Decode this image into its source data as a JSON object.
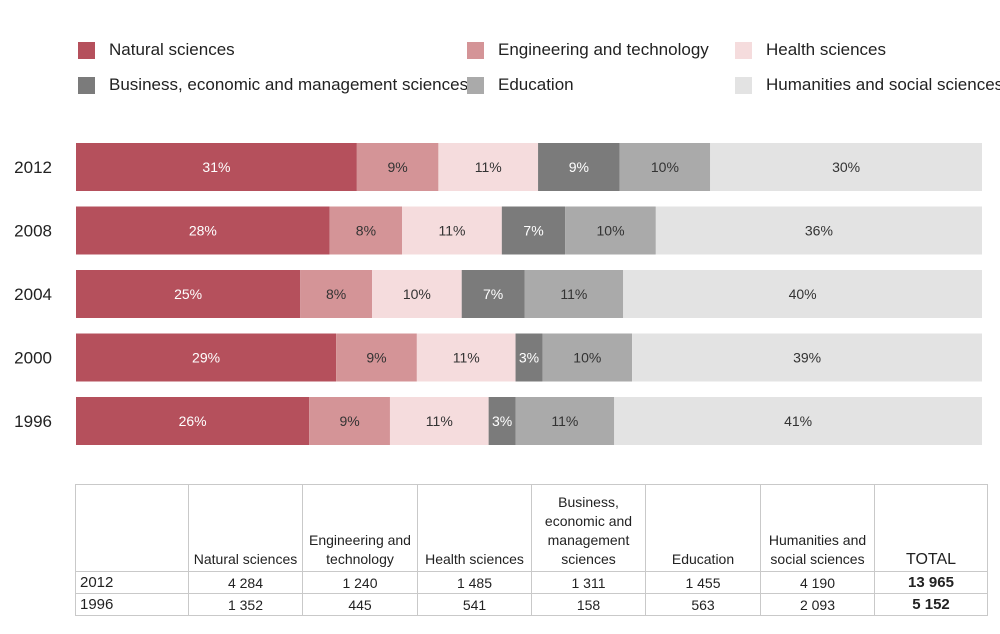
{
  "chart_data": {
    "type": "bar",
    "orientation": "horizontal",
    "stacked": true,
    "percent": true,
    "categories": [
      "2012",
      "2008",
      "2004",
      "2000",
      "1996"
    ],
    "series": [
      {
        "name": "Natural sciences",
        "color": "#b5505c",
        "values": [
          31,
          28,
          25,
          29,
          26
        ]
      },
      {
        "name": "Engineering and technology",
        "color": "#d49497",
        "values": [
          9,
          8,
          8,
          9,
          9
        ]
      },
      {
        "name": "Health sciences",
        "color": "#f5dcdd",
        "values": [
          11,
          11,
          10,
          11,
          11
        ]
      },
      {
        "name": "Business, economic and management sciences",
        "color": "#7b7b7b",
        "values": [
          9,
          7,
          7,
          3,
          3
        ]
      },
      {
        "name": "Education",
        "color": "#aaaaaa",
        "values": [
          10,
          10,
          11,
          10,
          11
        ]
      },
      {
        "name": "Humanities and social sciences",
        "color": "#e3e3e3",
        "values": [
          30,
          36,
          40,
          39,
          41
        ]
      }
    ],
    "legend": [
      {
        "label": "Natural sciences",
        "color": "#b5505c"
      },
      {
        "label": "Engineering and technology",
        "color": "#d49497"
      },
      {
        "label": "Health sciences",
        "color": "#f5dcdd"
      },
      {
        "label": "Business, economic and management sciences",
        "color": "#7b7b7b"
      },
      {
        "label": "Education",
        "color": "#aaaaaa"
      },
      {
        "label": "Humanities and social sciences",
        "color": "#e3e3e3"
      }
    ],
    "legend_placement": "top",
    "grid": false
  },
  "table": {
    "headers": [
      "",
      "Natural sciences",
      "Engineering and technology",
      "Health sciences",
      "Business, economic and management sciences",
      "Education",
      "Humanities and social sciences",
      "TOTAL"
    ],
    "rows": [
      {
        "year": "2012",
        "values": [
          "4 284",
          "1 240",
          "1 485",
          "1 311",
          "1 455",
          "4 190"
        ],
        "total": "13 965"
      },
      {
        "year": "1996",
        "values": [
          "1 352",
          "445",
          "541",
          "158",
          "563",
          "2 093"
        ],
        "total": "5 152"
      }
    ]
  }
}
